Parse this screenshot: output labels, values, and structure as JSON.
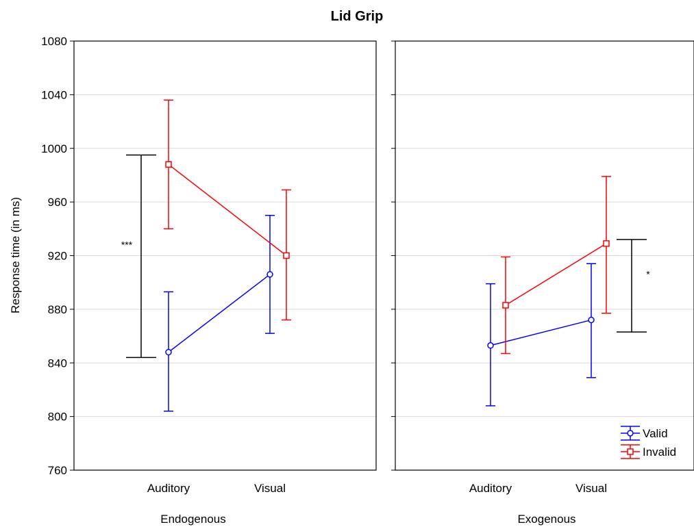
{
  "chart_data": {
    "type": "line",
    "title": "Lid Grip",
    "ylabel": "Response time (in ms)",
    "ylim": [
      760,
      1080
    ],
    "yticks": [
      "760",
      "800",
      "840",
      "880",
      "920",
      "960",
      "1000",
      "1040",
      "1080"
    ],
    "categories": [
      "Auditory",
      "Visual"
    ],
    "grid": true,
    "legend_position": "bottom-right",
    "panels": [
      {
        "label": "Endogenous",
        "series": [
          {
            "name": "Valid",
            "color": "#0000ff",
            "marker": "circle",
            "values": [
              848,
              906
            ],
            "lower": [
              804,
              862
            ],
            "upper": [
              893,
              950
            ]
          },
          {
            "name": "Invalid",
            "color": "#ff0000",
            "marker": "square",
            "values": [
              988,
              920
            ],
            "lower": [
              940,
              872
            ],
            "upper": [
              1036,
              969
            ]
          }
        ],
        "annotation": {
          "symbol": "***",
          "low": 844,
          "high": 995
        }
      },
      {
        "label": "Exogenous",
        "series": [
          {
            "name": "Valid",
            "color": "#0000ff",
            "marker": "circle",
            "values": [
              853,
              872
            ],
            "lower": [
              808,
              829
            ],
            "upper": [
              899,
              914
            ]
          },
          {
            "name": "Invalid",
            "color": "#ff0000",
            "marker": "square",
            "values": [
              883,
              929
            ],
            "lower": [
              847,
              877
            ],
            "upper": [
              919,
              979
            ]
          }
        ],
        "annotation": {
          "symbol": "*",
          "low": 863,
          "high": 932
        }
      }
    ]
  }
}
